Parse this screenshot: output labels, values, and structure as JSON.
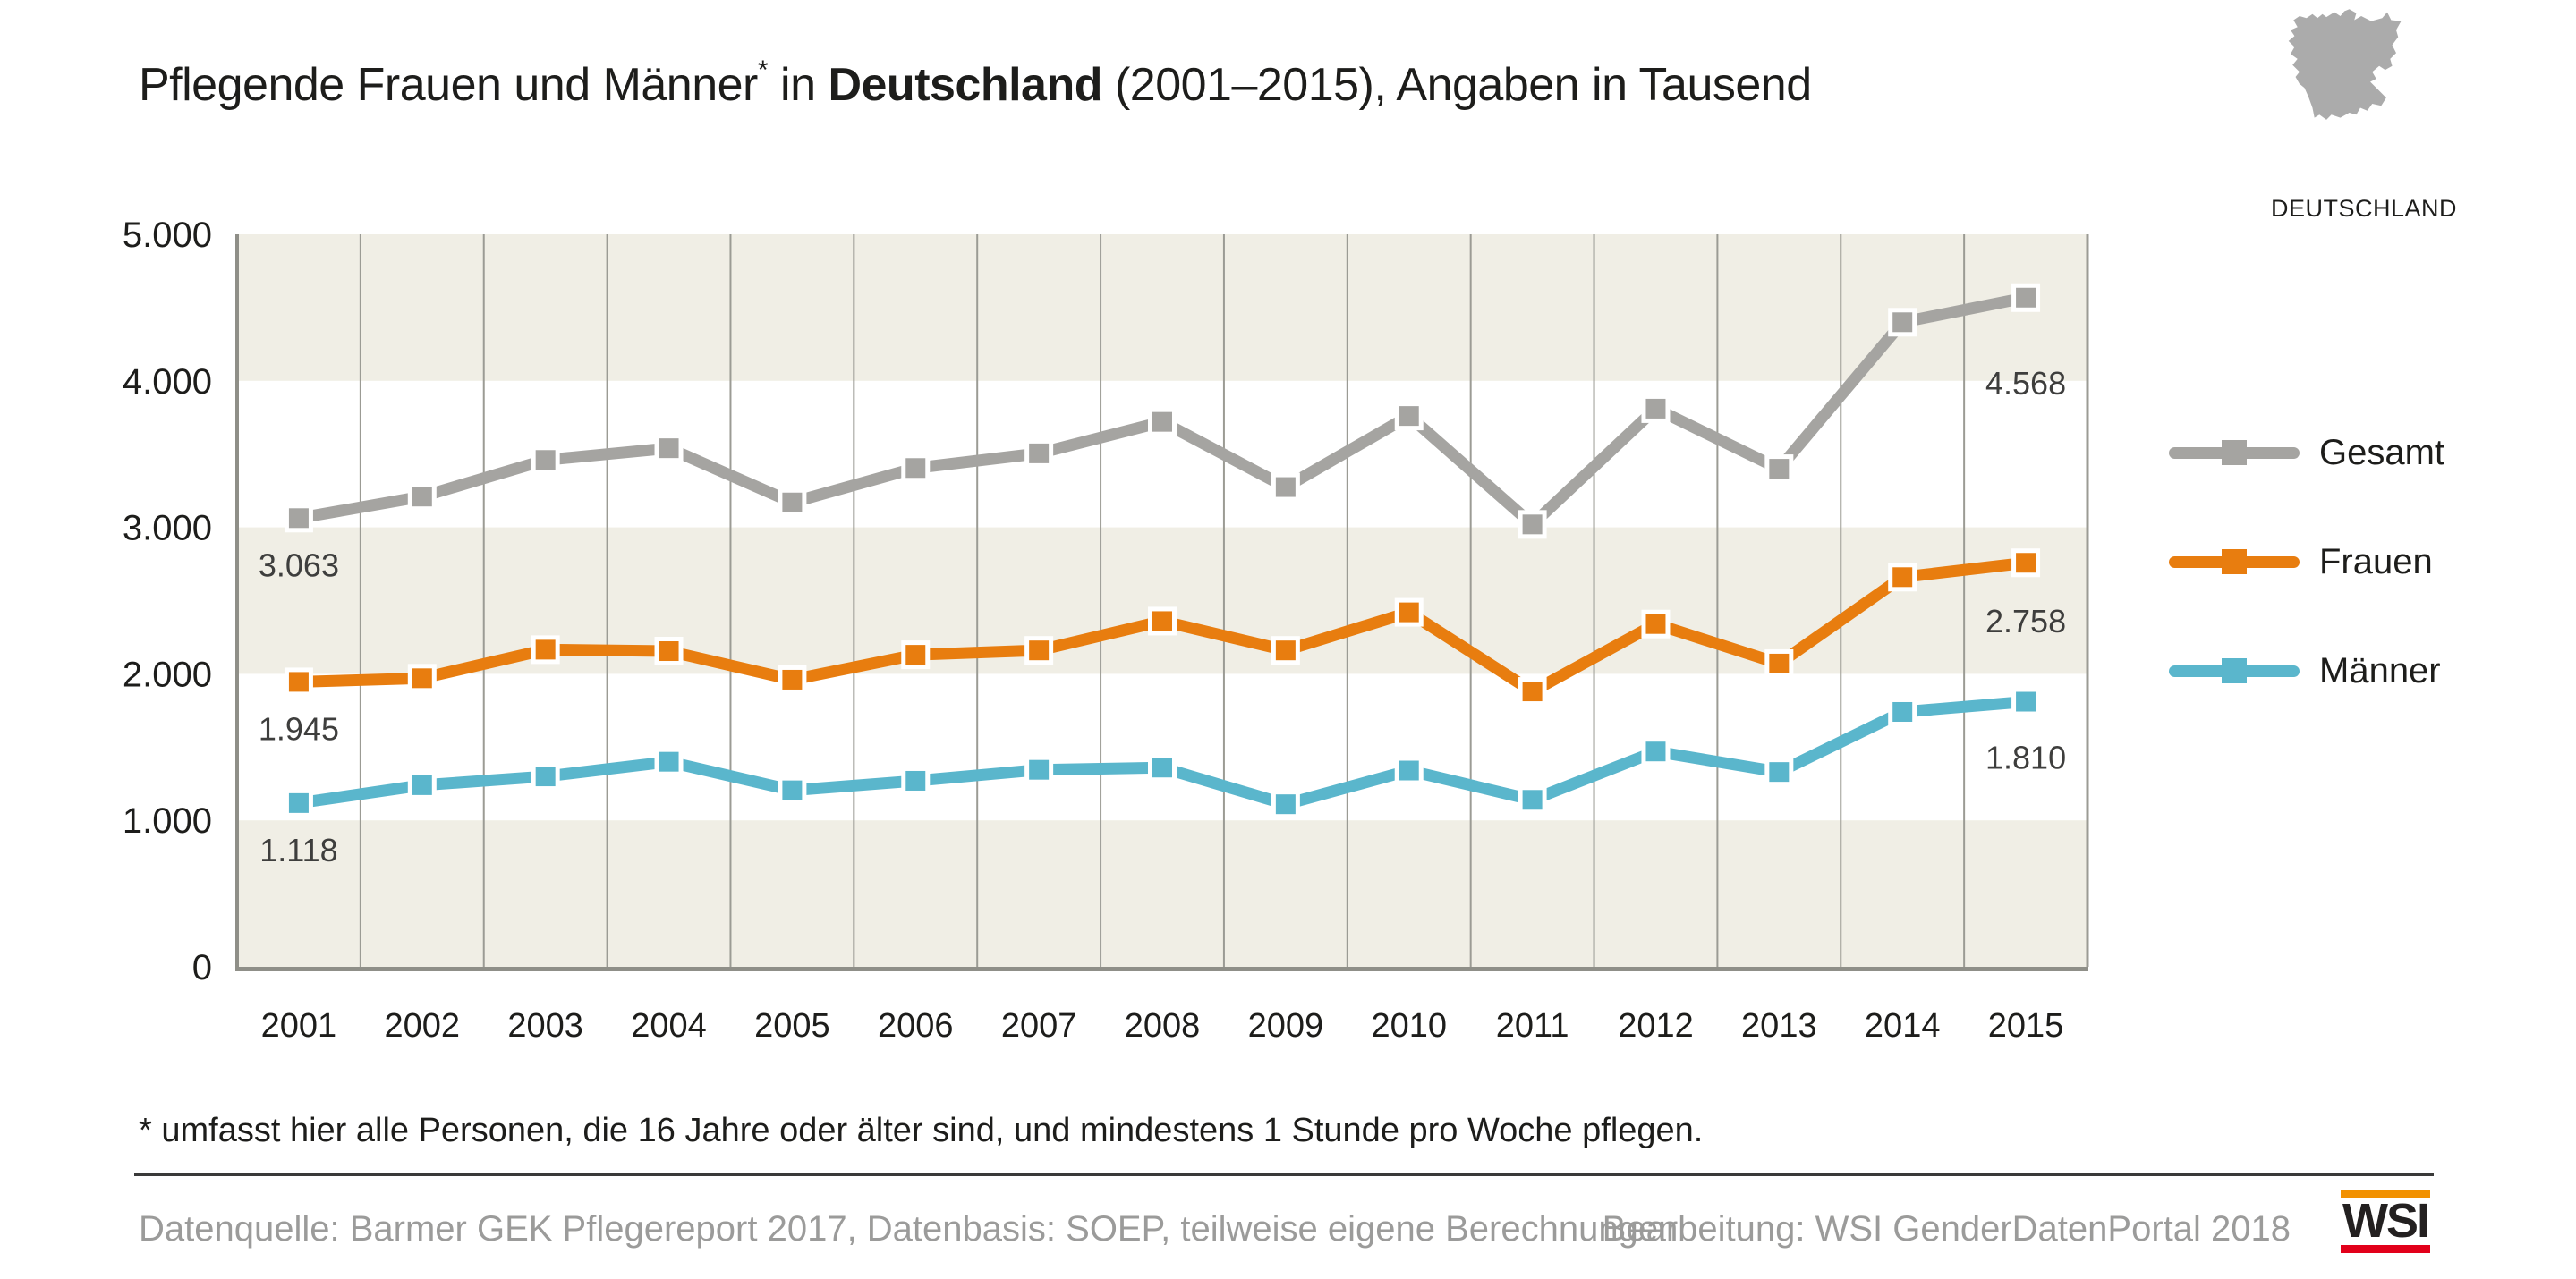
{
  "title": {
    "part1": "Pflegende Frauen und Männer",
    "asterisk": "*",
    "part2": " in ",
    "bold": "Deutschland",
    "part3": " (2001–2015), Angaben in Tausend"
  },
  "map_label": "DEUTSCHLAND",
  "chart_data": {
    "type": "line",
    "title": "Pflegende Frauen und Männer in Deutschland (2001–2015), Angaben in Tausend",
    "xlabel": "",
    "ylabel": "",
    "unit": "Tausend",
    "x": [
      2001,
      2002,
      2003,
      2004,
      2005,
      2006,
      2007,
      2008,
      2009,
      2010,
      2011,
      2012,
      2013,
      2014,
      2015
    ],
    "ylim": [
      0,
      5000
    ],
    "grid": "vertical-per-year, horizontal beige bands every 1000",
    "legend_position": "right",
    "y_ticks": [
      {
        "value": 5000,
        "label": "5.000"
      },
      {
        "value": 4000,
        "label": "4.000"
      },
      {
        "value": 3000,
        "label": "3.000"
      },
      {
        "value": 2000,
        "label": "2.000"
      },
      {
        "value": 1000,
        "label": "1.000"
      },
      {
        "value": 0,
        "label": "0"
      }
    ],
    "bands": [
      [
        4000,
        5000
      ],
      [
        2000,
        3000
      ],
      [
        0,
        1000
      ]
    ],
    "series": [
      {
        "name": "Gesamt",
        "color": "#A5A4A1",
        "values": [
          3063,
          3210,
          3460,
          3540,
          3170,
          3405,
          3505,
          3720,
          3275,
          3760,
          3020,
          3810,
          3400,
          4400,
          4568
        ],
        "first_label": "3.063",
        "last_label": "4.568"
      },
      {
        "name": "Frauen",
        "color": "#E87D0F",
        "values": [
          1945,
          1970,
          2165,
          2155,
          1960,
          2130,
          2160,
          2360,
          2160,
          2420,
          1880,
          2340,
          2070,
          2660,
          2758
        ],
        "first_label": "1.945",
        "last_label": "2.758"
      },
      {
        "name": "Männer",
        "color": "#5AB6CC",
        "values": [
          1118,
          1240,
          1300,
          1400,
          1205,
          1270,
          1345,
          1360,
          1110,
          1340,
          1140,
          1470,
          1330,
          1740,
          1810
        ],
        "first_label": "1.118",
        "last_label": "1.810"
      }
    ],
    "annotation_note": "Only 2001 and 2015 values are labeled in the figure; intermediate values are read from the plot."
  },
  "footnote": "* umfasst hier alle Personen, die 16 Jahre oder älter sind, und mindestens 1 Stunde pro Woche pflegen.",
  "footer": {
    "source": "Datenquelle: Barmer GEK Pflegereport 2017, Datenbasis: SOEP, teilweise eigene Berechnungen",
    "editor": "Bearbeitung: WSI GenderDatenPortal 2018",
    "logo_text": "WSI"
  },
  "colors": {
    "orange": "#E87D0F",
    "teal": "#5AB6CC",
    "gray": "#A5A4A1",
    "band": "#F0EEE5",
    "grid": "#9B9B94",
    "axis": "#8F8F88",
    "text-dark": "#1D1D1B",
    "text-muted": "#9B9B9A",
    "divider": "#3A3A39",
    "map-gray": "#ABABAB",
    "wsi-orange": "#F29100",
    "wsi-red": "#E2001A"
  }
}
